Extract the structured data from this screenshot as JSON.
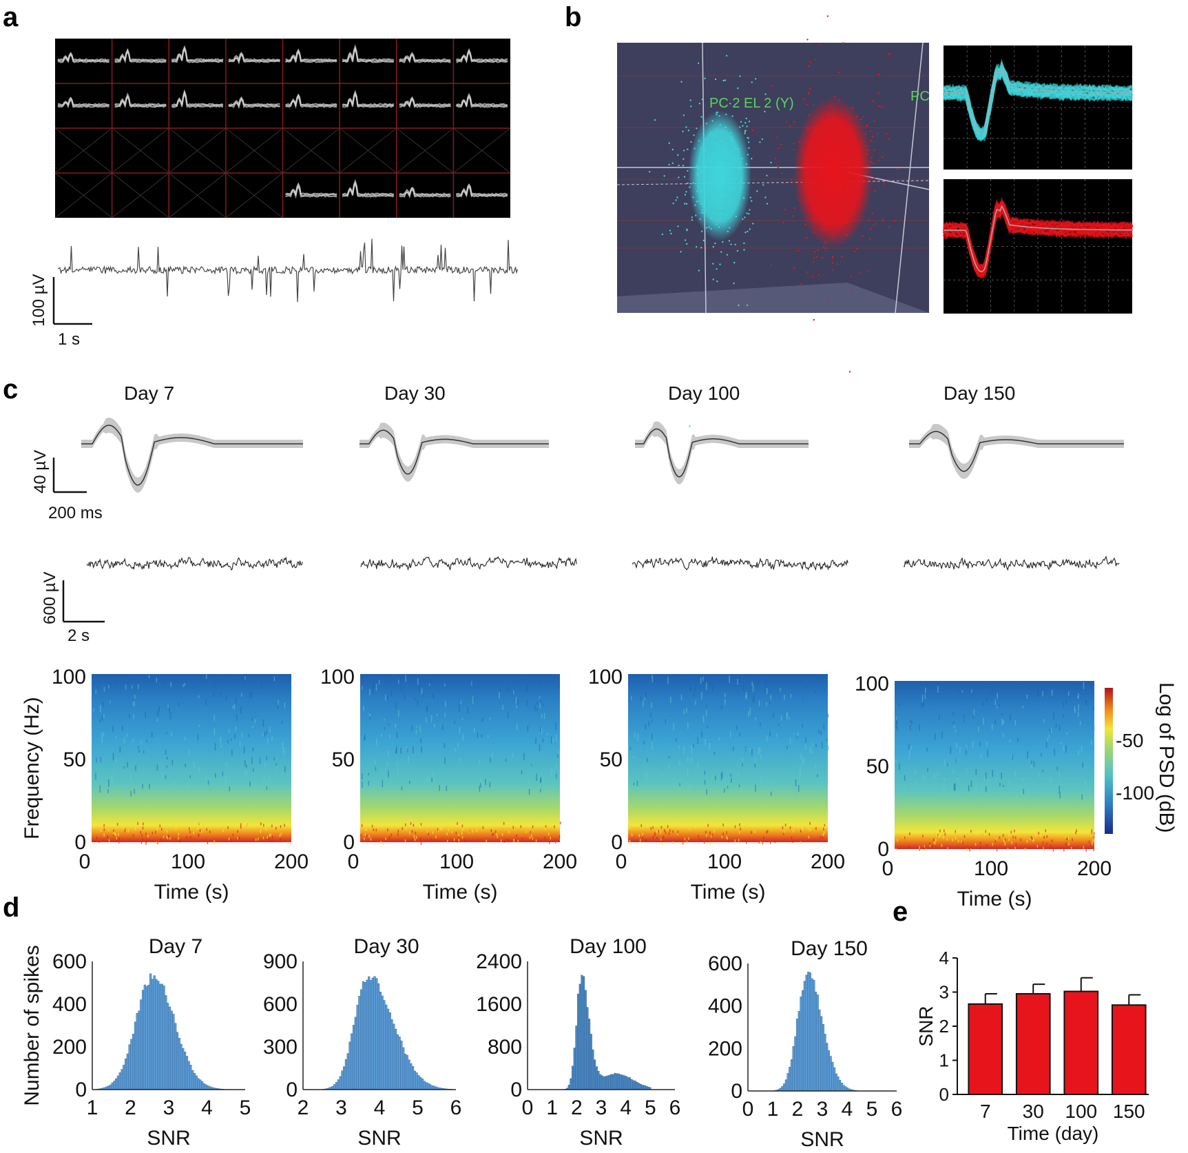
{
  "panels": {
    "a": "a",
    "b": "b",
    "c": "c",
    "d": "d",
    "e": "e"
  },
  "panel_a": {
    "scale_y": "100 µV",
    "scale_x": "1 s"
  },
  "panel_b": {
    "axis_label": "PC 2 EL 2 (Y)",
    "axis_label2": "PC",
    "cluster_colors": [
      "#3fd6dc",
      "#e8141c"
    ]
  },
  "panel_c": {
    "days": [
      "Day 7",
      "Day 30",
      "Day 100",
      "Day 150"
    ],
    "spike_scale_y": "40 µV",
    "spike_scale_x": "200 ms",
    "lfp_scale_y": "600 µV",
    "lfp_scale_x": "2 s",
    "spectrogram_ylabel": "Frequency (Hz)",
    "spectrogram_xlabel": "Time (s)",
    "spectrogram_yticks": [
      "0",
      "50",
      "100"
    ],
    "spectrogram_xticks": [
      "0",
      "100",
      "200"
    ],
    "colorbar_label": "Log of PSD (dB)",
    "colorbar_ticks": [
      "-50",
      "-100"
    ]
  },
  "chart_data": [
    {
      "type": "bar",
      "subtype": "histogram",
      "title": "Day 7",
      "xlabel": "SNR",
      "ylabel": "Number of spikes",
      "xlim": [
        1,
        5
      ],
      "ylim": [
        0,
        600
      ],
      "xticks": [
        "1",
        "2",
        "3",
        "4",
        "5"
      ],
      "yticks": [
        "0",
        "200",
        "400",
        "600"
      ],
      "peak_x": 2.6,
      "peak_y": 540,
      "sigma_left": 0.45,
      "sigma_right": 0.55,
      "tail": 0,
      "color": "#5b9bd5"
    },
    {
      "type": "bar",
      "subtype": "histogram",
      "title": "Day 30",
      "xlabel": "SNR",
      "ylabel": "",
      "xlim": [
        2,
        6
      ],
      "ylim": [
        0,
        900
      ],
      "xticks": [
        "2",
        "3",
        "4",
        "5",
        "6"
      ],
      "yticks": [
        "0",
        "300",
        "600",
        "900"
      ],
      "peak_x": 3.7,
      "peak_y": 820,
      "sigma_left": 0.35,
      "sigma_right": 0.65,
      "tail": 0,
      "color": "#5b9bd5"
    },
    {
      "type": "bar",
      "subtype": "histogram",
      "title": "Day 100",
      "xlabel": "SNR",
      "ylabel": "",
      "xlim": [
        0,
        6
      ],
      "ylim": [
        0,
        2400
      ],
      "xticks": [
        "0",
        "1",
        "2",
        "3",
        "4",
        "5",
        "6"
      ],
      "yticks": [
        "0",
        "800",
        "1600",
        "2400"
      ],
      "peak_x": 2.2,
      "peak_y": 2200,
      "sigma_left": 0.2,
      "sigma_right": 0.3,
      "tail": 300,
      "color": "#4a86c0"
    },
    {
      "type": "bar",
      "subtype": "histogram",
      "title": "Day 150",
      "xlabel": "SNR",
      "ylabel": "",
      "xlim": [
        0,
        6
      ],
      "ylim": [
        0,
        600
      ],
      "xticks": [
        "0",
        "1",
        "2",
        "3",
        "4",
        "5",
        "6"
      ],
      "yticks": [
        "0",
        "200",
        "400",
        "600"
      ],
      "peak_x": 2.4,
      "peak_y": 560,
      "sigma_left": 0.4,
      "sigma_right": 0.6,
      "tail": 0,
      "color": "#5b9bd5"
    },
    {
      "type": "bar",
      "title": "",
      "categories": [
        "7",
        "30",
        "100",
        "150"
      ],
      "values": [
        2.65,
        2.95,
        3.02,
        2.62
      ],
      "errors": [
        0.3,
        0.28,
        0.4,
        0.3
      ],
      "xlabel": "Time (day)",
      "ylabel": "SNR",
      "ylim": [
        0,
        4
      ],
      "yticks": [
        "0",
        "1",
        "2",
        "3",
        "4"
      ],
      "color": "#e8141c"
    }
  ]
}
